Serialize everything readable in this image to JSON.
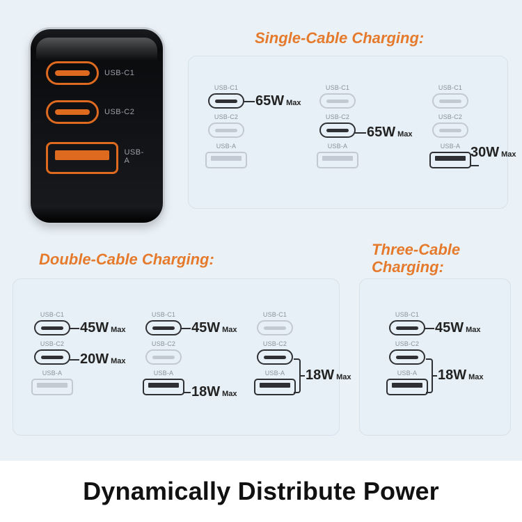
{
  "colors": {
    "page_bg": "#eaf2f7",
    "panel_bg": "#e7f0f6",
    "panel_border": "#d6e1ea",
    "accent": "#e57a2c",
    "charger_body": "#18191d",
    "port_active": "#2e3033",
    "port_dim": "#c2c9d2",
    "port_label": "#8a9199",
    "callout_text": "#222222",
    "footer_bg": "#ffffff"
  },
  "typography": {
    "title_fontsize": 22,
    "title_style": "italic bold",
    "wattage_fontsize": 20,
    "wattage_weight": 800,
    "max_fontsize": 11,
    "headline_fontsize": 36,
    "headline_weight": 800,
    "port_label_fontsize": 9
  },
  "hero_charger": {
    "ports": [
      {
        "type": "usb-c",
        "label": "USB-C1"
      },
      {
        "type": "usb-c",
        "label": "USB-C2"
      },
      {
        "type": "usb-a",
        "label": "USB-A"
      }
    ]
  },
  "panels": {
    "single": {
      "title": "Single-Cable Charging:",
      "blocks": [
        {
          "active": [
            "c1"
          ],
          "callouts": [
            {
              "ports": [
                "c1"
              ],
              "watts": "65W",
              "suffix": "Max"
            }
          ]
        },
        {
          "active": [
            "c2"
          ],
          "callouts": [
            {
              "ports": [
                "c2"
              ],
              "watts": "65W",
              "suffix": "Max"
            }
          ]
        },
        {
          "active": [
            "a"
          ],
          "callouts": [
            {
              "ports": [
                "a"
              ],
              "watts": "30W",
              "suffix": "Max"
            }
          ]
        }
      ]
    },
    "double": {
      "title": "Double-Cable Charging:",
      "blocks": [
        {
          "active": [
            "c1",
            "c2"
          ],
          "callouts": [
            {
              "ports": [
                "c1"
              ],
              "watts": "45W",
              "suffix": "Max"
            },
            {
              "ports": [
                "c2"
              ],
              "watts": "20W",
              "suffix": "Max"
            }
          ]
        },
        {
          "active": [
            "c1",
            "a"
          ],
          "callouts": [
            {
              "ports": [
                "c1"
              ],
              "watts": "45W",
              "suffix": "Max"
            },
            {
              "ports": [
                "a"
              ],
              "watts": "18W",
              "suffix": "Max"
            }
          ]
        },
        {
          "active": [
            "c2",
            "a"
          ],
          "callouts": [
            {
              "ports": [
                "c2",
                "a"
              ],
              "watts": "18W",
              "suffix": "Max"
            }
          ]
        }
      ]
    },
    "triple": {
      "title": "Three-Cable\nCharging:",
      "blocks": [
        {
          "active": [
            "c1",
            "c2",
            "a"
          ],
          "callouts": [
            {
              "ports": [
                "c1"
              ],
              "watts": "45W",
              "suffix": "Max"
            },
            {
              "ports": [
                "c2",
                "a"
              ],
              "watts": "18W",
              "suffix": "Max"
            }
          ]
        }
      ]
    }
  },
  "port_labels": {
    "c1": "USB-C1",
    "c2": "USB-C2",
    "a": "USB-A"
  },
  "headline": "Dynamically Distribute Power"
}
